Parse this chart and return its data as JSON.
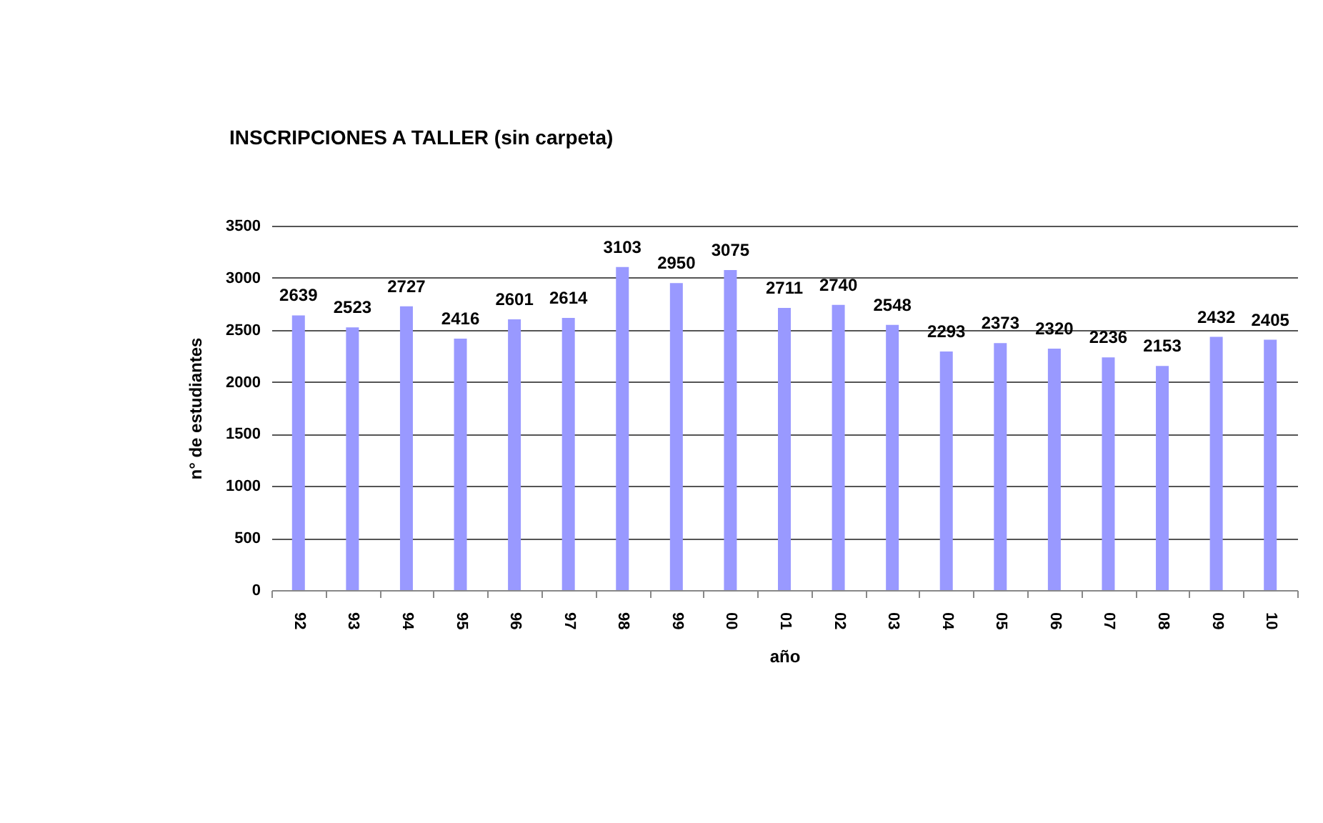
{
  "chart_data": {
    "type": "bar",
    "title": "INSCRIPCIONES A TALLER (sin carpeta)",
    "xlabel": "año",
    "ylabel": "n° de estudiantes",
    "categories": [
      "92",
      "93",
      "94",
      "95",
      "96",
      "97",
      "98",
      "99",
      "00",
      "01",
      "02",
      "03",
      "04",
      "05",
      "06",
      "07",
      "08",
      "09",
      "10"
    ],
    "values": [
      2639,
      2523,
      2727,
      2416,
      2601,
      2614,
      3103,
      2950,
      3075,
      2711,
      2740,
      2548,
      2293,
      2373,
      2320,
      2236,
      2153,
      2432,
      2405
    ],
    "color": "#9999ff",
    "ylim": [
      0,
      3500
    ],
    "yticks": [
      0,
      500,
      1000,
      1500,
      2000,
      2500,
      3000,
      3500
    ],
    "grid": "y",
    "data_labels": true
  }
}
